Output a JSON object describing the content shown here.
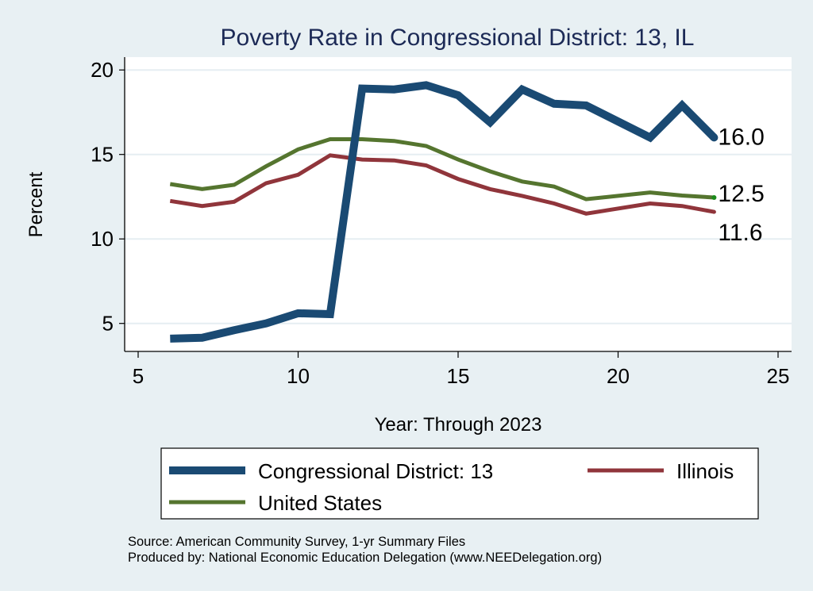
{
  "chart_data": {
    "type": "line",
    "title": "Poverty Rate in Congressional District:  13, IL",
    "xlabel": "Year: Through 2023",
    "ylabel": "Percent",
    "xlim": [
      5,
      25
    ],
    "ylim": [
      4,
      20.8
    ],
    "xticks": [
      5,
      10,
      15,
      20,
      25
    ],
    "yticks": [
      5,
      10,
      15,
      20
    ],
    "grid": true,
    "legend_position": "bottom",
    "series": [
      {
        "name": "Congressional District:  13",
        "color": "#1a4a73",
        "x": [
          6,
          7,
          8,
          9,
          10,
          11,
          12,
          13,
          14,
          15,
          16,
          17,
          18,
          19,
          21,
          22,
          23
        ],
        "values": [
          4.1,
          4.15,
          4.6,
          5.0,
          5.6,
          5.55,
          18.9,
          18.85,
          19.1,
          18.5,
          16.9,
          18.85,
          18.0,
          17.9,
          16.0,
          17.9,
          16.0
        ],
        "end_label": "16.0"
      },
      {
        "name": "Illinois",
        "color": "#90353b",
        "x": [
          6,
          7,
          8,
          9,
          10,
          11,
          12,
          13,
          14,
          15,
          16,
          17,
          18,
          19,
          21,
          22,
          23
        ],
        "values": [
          12.25,
          11.95,
          12.2,
          13.3,
          13.8,
          14.95,
          14.7,
          14.65,
          14.35,
          13.55,
          12.95,
          12.55,
          12.1,
          11.5,
          12.1,
          11.95,
          11.6
        ],
        "end_label": "11.6"
      },
      {
        "name": "United States",
        "color": "#55752f",
        "x": [
          6,
          7,
          8,
          9,
          10,
          11,
          12,
          13,
          14,
          15,
          16,
          17,
          18,
          19,
          21,
          22,
          23
        ],
        "values": [
          13.25,
          12.95,
          13.2,
          14.3,
          15.3,
          15.9,
          15.9,
          15.8,
          15.5,
          14.7,
          14.0,
          13.4,
          13.1,
          12.35,
          12.75,
          12.57,
          12.45
        ],
        "end_label": "12.5"
      }
    ]
  },
  "footnotes": {
    "source": "Source: American Community Survey, 1-yr Summary Files",
    "produced": "Produced by: National Economic Education Delegation (www.NEEDelegation.org)"
  }
}
